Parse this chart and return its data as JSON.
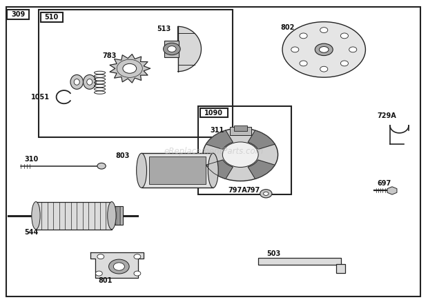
{
  "bg_color": "#ffffff",
  "border_color": "#222222",
  "label_color": "#111111",
  "watermark": "eReplacementParts.com"
}
